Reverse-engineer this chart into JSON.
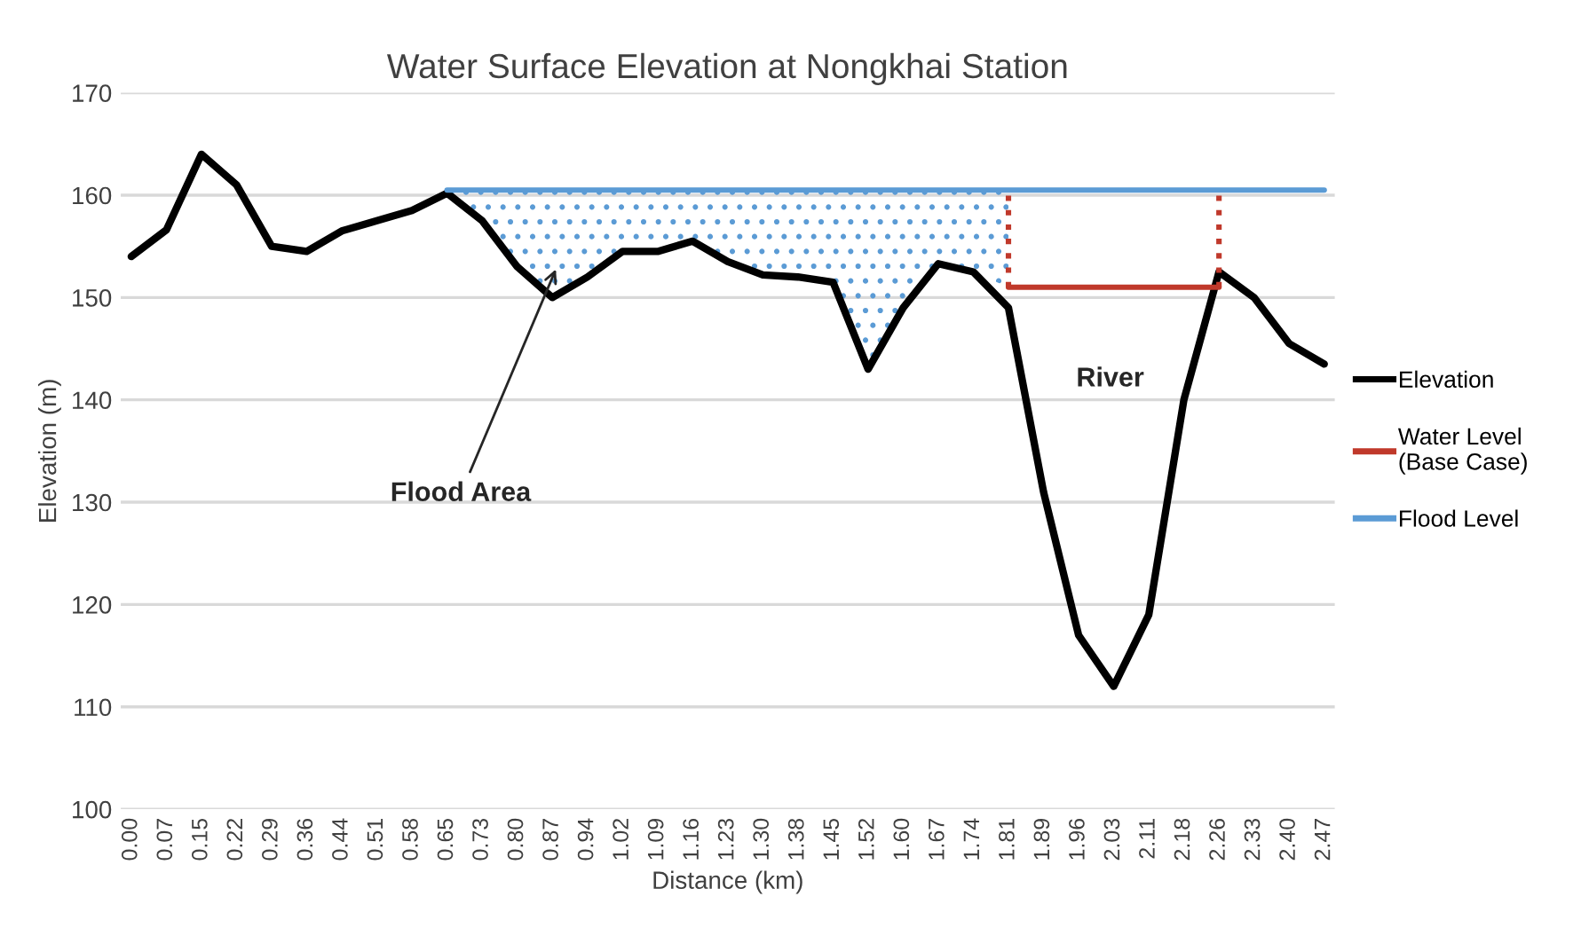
{
  "chart_data": {
    "type": "line",
    "title": "Water Surface Elevation at Nongkhai Station",
    "xlabel": "Distance (km)",
    "ylabel": "Elevation (m)",
    "categories": [
      "0.00",
      "0.07",
      "0.15",
      "0.22",
      "0.29",
      "0.36",
      "0.44",
      "0.51",
      "0.58",
      "0.65",
      "0.73",
      "0.80",
      "0.87",
      "0.94",
      "1.02",
      "1.09",
      "1.16",
      "1.23",
      "1.30",
      "1.38",
      "1.45",
      "1.52",
      "1.60",
      "1.67",
      "1.74",
      "1.81",
      "1.89",
      "1.96",
      "2.03",
      "2.11",
      "2.18",
      "2.26",
      "2.33",
      "2.40",
      "2.47"
    ],
    "series": [
      {
        "name": "Elevation",
        "color": "#000000",
        "values": [
          154,
          156.6,
          164,
          161,
          155,
          154.5,
          156.5,
          157.5,
          158.5,
          160.2,
          157.5,
          153,
          150,
          152,
          154.5,
          154.5,
          155.5,
          153.5,
          152.2,
          152,
          151.5,
          143,
          149,
          153.3,
          152.5,
          149,
          131,
          117,
          112,
          119,
          140,
          152.5,
          150,
          145.5,
          143.5
        ]
      },
      {
        "name": "Water Level\n(Base Case)",
        "color": "#c0392b",
        "values": [
          null,
          null,
          null,
          null,
          null,
          null,
          null,
          null,
          null,
          null,
          null,
          null,
          null,
          null,
          null,
          null,
          null,
          null,
          null,
          null,
          null,
          null,
          null,
          null,
          null,
          151,
          151,
          151,
          151,
          151,
          151,
          151,
          null,
          null,
          null
        ]
      },
      {
        "name": "Flood Level",
        "color": "#5b9bd5",
        "values": [
          null,
          null,
          null,
          null,
          null,
          null,
          null,
          null,
          null,
          160.5,
          160.5,
          160.5,
          160.5,
          160.5,
          160.5,
          160.5,
          160.5,
          160.5,
          160.5,
          160.5,
          160.5,
          160.5,
          160.5,
          160.5,
          160.5,
          160.5,
          160.5,
          160.5,
          160.5,
          160.5,
          160.5,
          160.5,
          160.5,
          160.5,
          160.5
        ],
        "lower": [
          null,
          null,
          null,
          null,
          null,
          null,
          null,
          null,
          null,
          160.2,
          157.5,
          153,
          150,
          152,
          154.5,
          154.5,
          155.5,
          153.5,
          152.2,
          152,
          151.5,
          143,
          149,
          153.3,
          152.5,
          151,
          null,
          null,
          null,
          null,
          null,
          null,
          null,
          null,
          null
        ],
        "upper": [
          null,
          null,
          null,
          null,
          null,
          null,
          null,
          null,
          null,
          160.5,
          160.5,
          160.5,
          160.5,
          160.5,
          160.5,
          160.5,
          160.5,
          160.5,
          160.5,
          160.5,
          160.5,
          160.5,
          160.5,
          160.5,
          160.5,
          160.5,
          null,
          null,
          null,
          null,
          null,
          null,
          null,
          null,
          null
        ]
      },
      {
        "color": "#c0392b",
        "line_style": "dotted",
        "x": [
          "1.81",
          "1.81"
        ],
        "values": [
          151,
          160.5
        ]
      },
      {
        "color": "#c0392b",
        "line_style": "dotted",
        "x": [
          "2.26",
          "2.26"
        ],
        "values": [
          151,
          160.5
        ]
      }
    ],
    "ylim": [
      100,
      170
    ],
    "yticks": [
      100,
      110,
      120,
      130,
      140,
      150,
      160,
      170
    ],
    "grid": "y",
    "legend": "right",
    "marker": "none",
    "line_style": "solid",
    "annotations": [
      "Flood Area",
      "River"
    ]
  }
}
